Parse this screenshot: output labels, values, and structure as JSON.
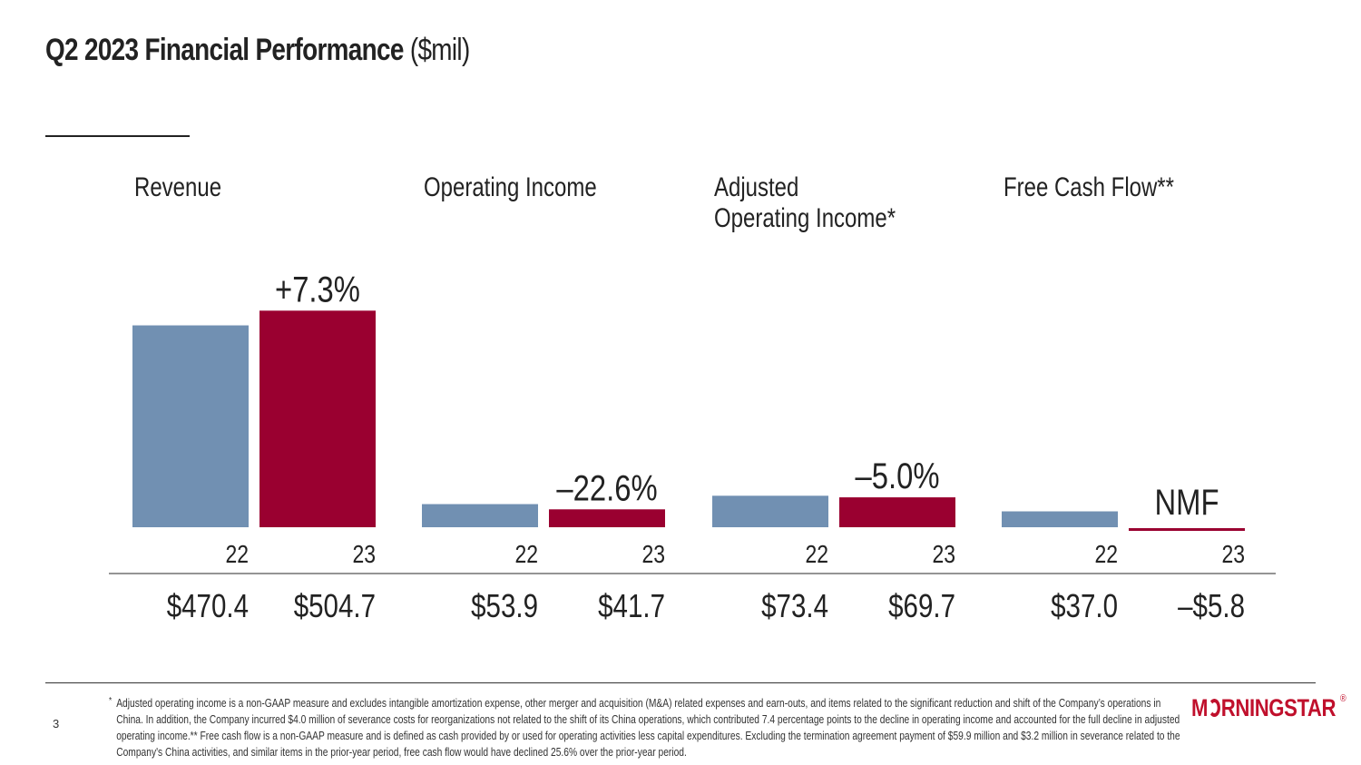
{
  "title": {
    "main": "Q2 2023 Financial Performance",
    "unit": "($mil)"
  },
  "page_number": "3",
  "footnote": {
    "marker": "*",
    "text": "Adjusted operating income is a non-GAAP measure and excludes intangible amortization expense, other merger and acquisition (M&A) related expenses and earn-outs, and items related to the significant reduction and shift of the Company’s operations in China. In addition, the Company incurred $4.0 million of severance costs for reorganizations not related to the shift of its China operations, which contributed 7.4 percentage points to the decline in operating income and accounted for the full decline in adjusted operating income.** Free cash flow is a non-GAAP measure and is defined as cash provided by or used for operating activities less capital expenditures. Excluding the termination agreement payment of $59.9 million and $3.2 million in severance related to the Company's China activities, and similar items in the prior-year period, free cash flow would have declined 25.6% over the prior-year period."
  },
  "logo": {
    "left": "M",
    "right": "RNINGSTAR",
    "mark": "®"
  },
  "colors": {
    "prior_year": "#7190b2",
    "current_year": "#9a0030",
    "text": "#222222"
  },
  "chart_data": {
    "type": "bar",
    "unit": "$mil",
    "series": [
      {
        "name": "22",
        "color": "#7190b2"
      },
      {
        "name": "23",
        "color": "#9a0030"
      }
    ],
    "groups": [
      {
        "title": [
          "Revenue"
        ],
        "values": [
          470.4,
          504.7
        ],
        "labels": [
          "$470.4",
          "$504.7"
        ],
        "change": "+7.3%"
      },
      {
        "title": [
          "Operating Income"
        ],
        "values": [
          53.9,
          41.7
        ],
        "labels": [
          "$53.9",
          "$41.7"
        ],
        "change": "–22.6%"
      },
      {
        "title": [
          "Adjusted",
          "Operating Income*"
        ],
        "values": [
          73.4,
          69.7
        ],
        "labels": [
          "$73.4",
          "$69.7"
        ],
        "change": "–5.0%"
      },
      {
        "title": [
          "Free Cash Flow**"
        ],
        "values": [
          37.0,
          -5.8
        ],
        "labels": [
          "$37.0",
          "–$5.8"
        ],
        "change": "NMF"
      }
    ]
  }
}
